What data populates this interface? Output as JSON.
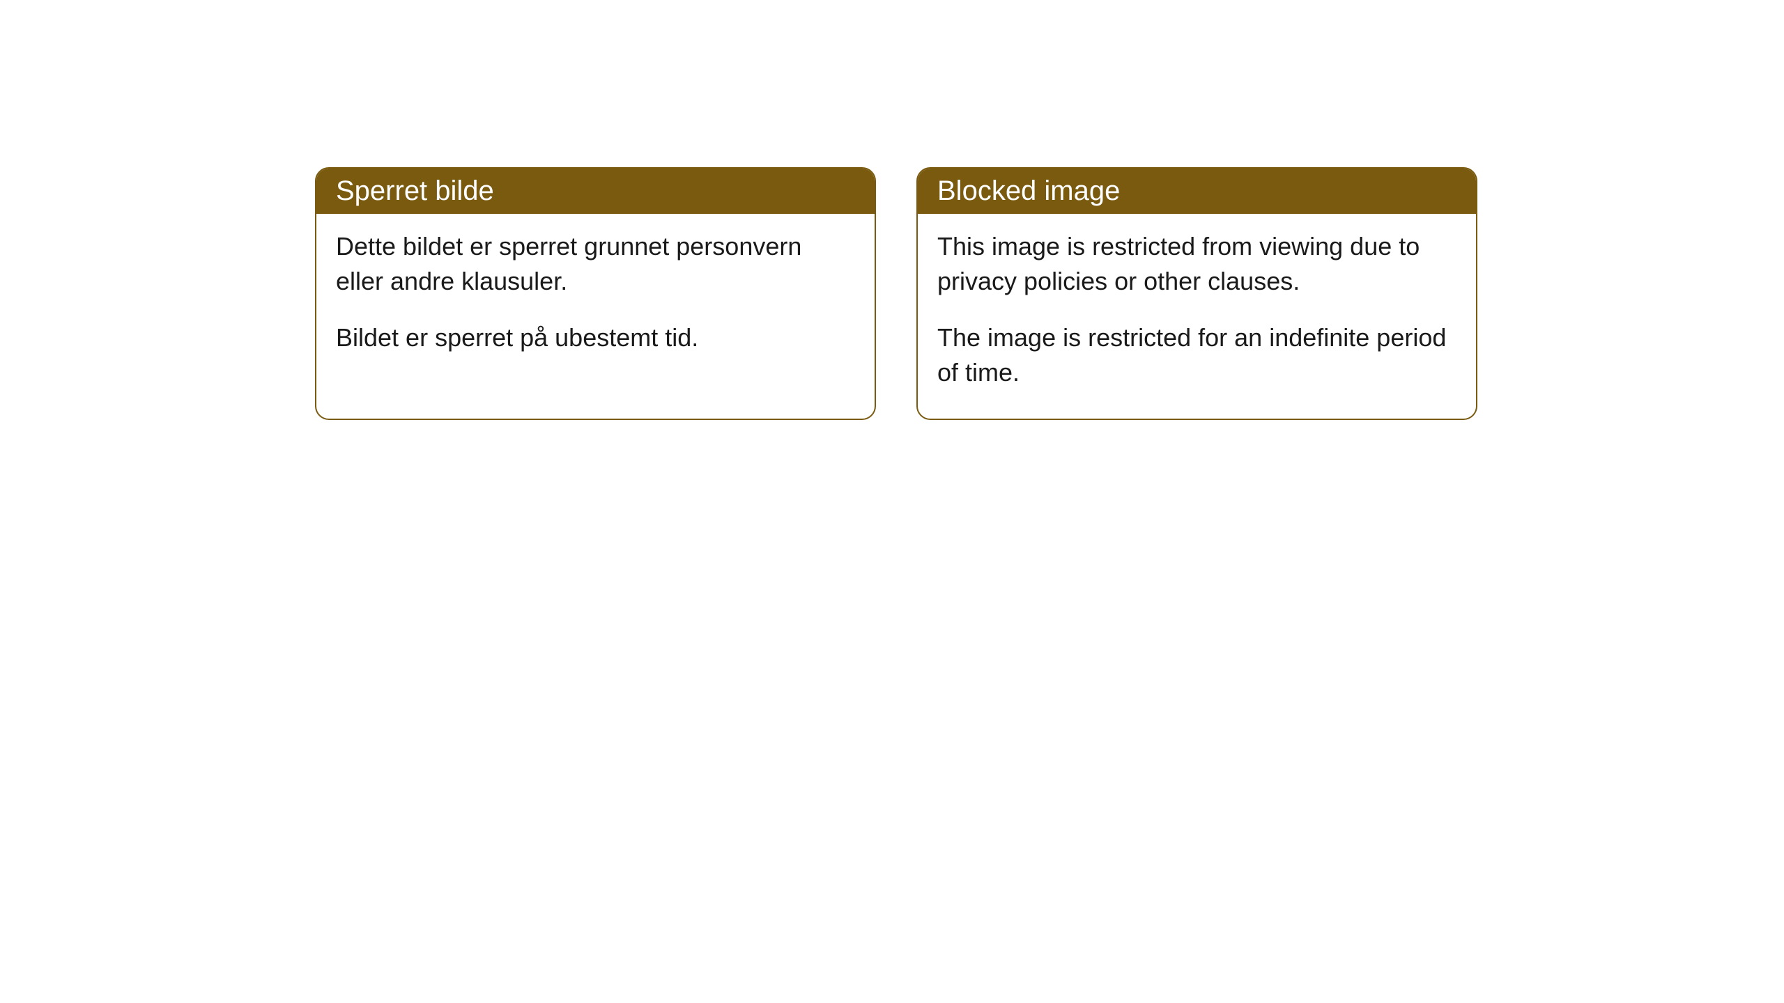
{
  "cards": [
    {
      "title": "Sperret bilde",
      "paragraph1": "Dette bildet er sperret grunnet personvern eller andre klausuler.",
      "paragraph2": "Bildet er sperret på ubestemt tid."
    },
    {
      "title": "Blocked image",
      "paragraph1": "This image is restricted from viewing due to privacy policies or other clauses.",
      "paragraph2": "The image is restricted for an indefinite period of time."
    }
  ],
  "styling": {
    "header_bg_color": "#795a0f",
    "header_text_color": "#ffffff",
    "border_color": "#795a0f",
    "body_bg_color": "#ffffff",
    "body_text_color": "#1a1a1a",
    "border_radius": 20,
    "header_fontsize": 40,
    "body_fontsize": 36
  }
}
